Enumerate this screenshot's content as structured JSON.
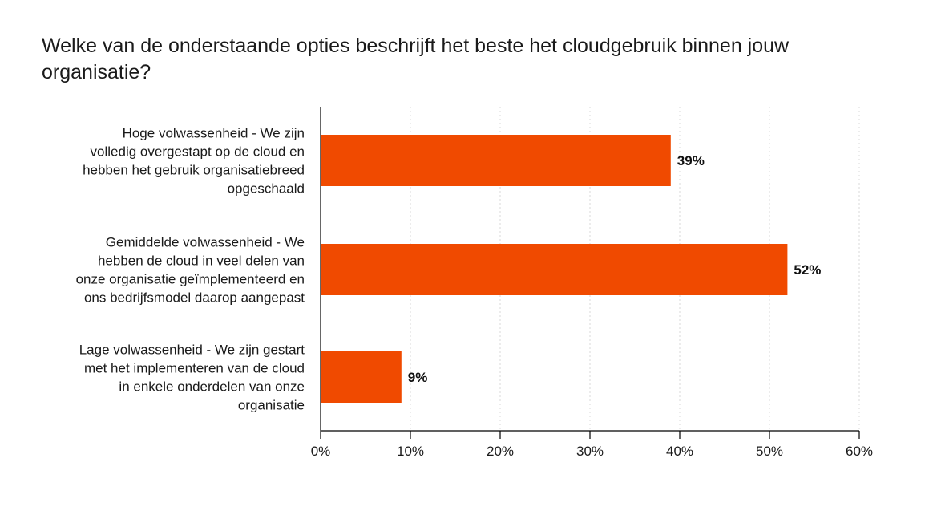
{
  "chart_data": {
    "type": "bar",
    "orientation": "horizontal",
    "title": "Welke van de onderstaande opties beschrijft het beste het cloudgebruik binnen jouw organisatie?",
    "categories": [
      "Hoge volwassenheid - We zijn volledig overgestapt op de cloud en hebben het gebruik organisatiebreed opgeschaald",
      "Gemiddelde volwassenheid - We hebben de cloud in veel delen van onze organisatie geïmplementeerd en ons bedrijfsmodel daarop aangepast",
      "Lage volwassenheid - We zijn gestart met het implementeren van de cloud in enkele onderdelen van onze organisatie"
    ],
    "category_lines": [
      [
        "Hoge volwassenheid - We zijn",
        "volledig overgestapt op de cloud en",
        "hebben het gebruik organisatiebreed",
        "opgeschaald"
      ],
      [
        "Gemiddelde volwassenheid - We",
        "hebben de cloud in veel delen van",
        "onze organisatie geïmplementeerd en",
        "ons bedrijfsmodel daarop aangepast"
      ],
      [
        "Lage volwassenheid - We zijn gestart",
        "met het implementeren van de cloud",
        "in enkele onderdelen van onze",
        "organisatie"
      ]
    ],
    "values": [
      39,
      52,
      9
    ],
    "data_labels": [
      "39%",
      "52%",
      "9%"
    ],
    "xlim": [
      0,
      60
    ],
    "x_ticks": [
      0,
      10,
      20,
      30,
      40,
      50,
      60
    ],
    "x_tick_labels": [
      "0%",
      "10%",
      "20%",
      "30%",
      "40%",
      "50%",
      "60%"
    ],
    "xlabel": "",
    "ylabel": "",
    "grid": "vertical dotted",
    "legend": "none",
    "bar_color": "#f04a00"
  }
}
